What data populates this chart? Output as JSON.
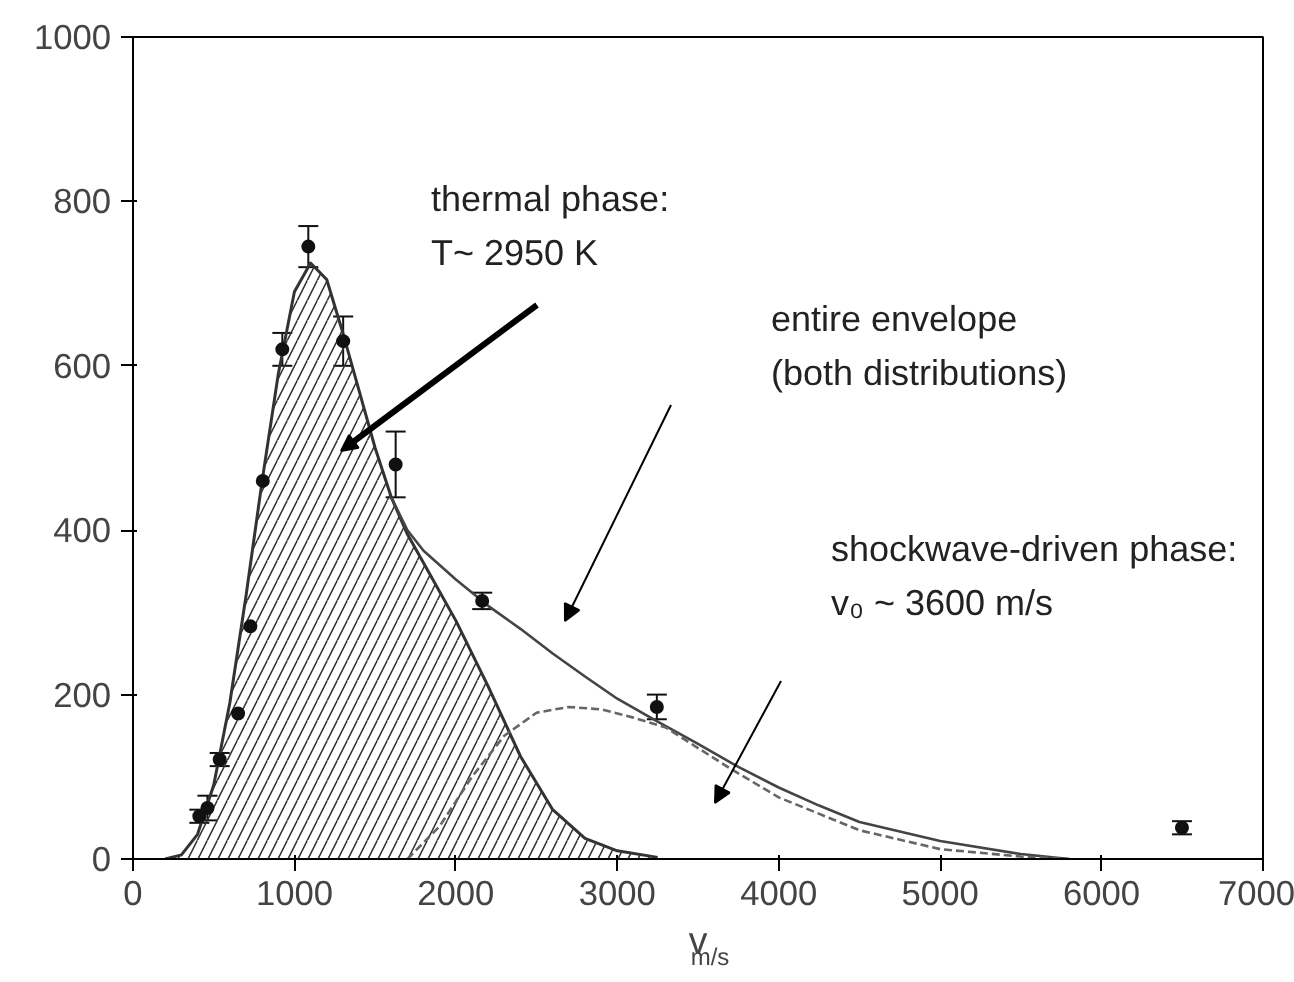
{
  "chart_data": {
    "type": "line",
    "xlabel": "v$_{m/s}$",
    "xlim": [
      0,
      7000
    ],
    "ylim": [
      0,
      1000
    ],
    "xticks": [
      0,
      1000,
      2000,
      3000,
      4000,
      5000,
      6000,
      7000
    ],
    "yticks": [
      0,
      200,
      400,
      600,
      800,
      1000
    ],
    "grid": false,
    "series": [
      {
        "type": "area",
        "color": "#333333",
        "x": [
          200,
          300,
          400,
          500,
          600,
          700,
          800,
          900,
          1000,
          1100,
          1200,
          1300,
          1400,
          1500,
          1600,
          1700,
          1800,
          2000,
          2200,
          2400,
          2600,
          2800,
          3000,
          3250
        ],
        "values": [
          0,
          5,
          30,
          90,
          190,
          320,
          460,
          590,
          690,
          725,
          705,
          640,
          570,
          500,
          440,
          395,
          360,
          290,
          210,
          125,
          60,
          25,
          10,
          2
        ]
      },
      {
        "type": "line",
        "color": "#444444",
        "line_style": "solid",
        "x": [
          1600,
          1700,
          1800,
          2000,
          2200,
          2400,
          2600,
          2800,
          3000,
          3250,
          3500,
          3750,
          4000,
          4250,
          4500,
          5000,
          5500,
          5800
        ],
        "values": [
          440,
          400,
          375,
          340,
          308,
          280,
          250,
          222,
          195,
          167,
          140,
          112,
          87,
          65,
          45,
          22,
          6,
          0
        ]
      },
      {
        "type": "line",
        "color": "#666666",
        "line_style": "dashed",
        "x": [
          1700,
          1900,
          2100,
          2300,
          2500,
          2700,
          2900,
          3100,
          3300,
          3500,
          3700,
          4000,
          4500,
          5000,
          5500,
          5800
        ],
        "values": [
          0,
          40,
          100,
          150,
          178,
          185,
          182,
          172,
          160,
          135,
          110,
          75,
          35,
          12,
          3,
          0
        ]
      },
      {
        "type": "scatter",
        "color": "#111111",
        "marker": "circle",
        "x": [
          411,
          461,
          537,
          651,
          727,
          804,
          925,
          1086,
          1302,
          1627,
          2163,
          3245,
          6498
        ],
        "values": [
          52,
          62,
          121,
          177,
          283,
          460,
          620,
          745,
          630,
          480,
          314,
          185,
          38
        ],
        "errors": [
          8,
          15,
          8,
          null,
          null,
          null,
          20,
          25,
          30,
          40,
          10,
          15,
          8
        ]
      }
    ],
    "annotations": [
      "thermal phase:\nT~ 2950 K",
      "entire envelope\n (both distributions)",
      "shockwave-driven phase:\nv₀ ~ 3600 m/s"
    ]
  }
}
